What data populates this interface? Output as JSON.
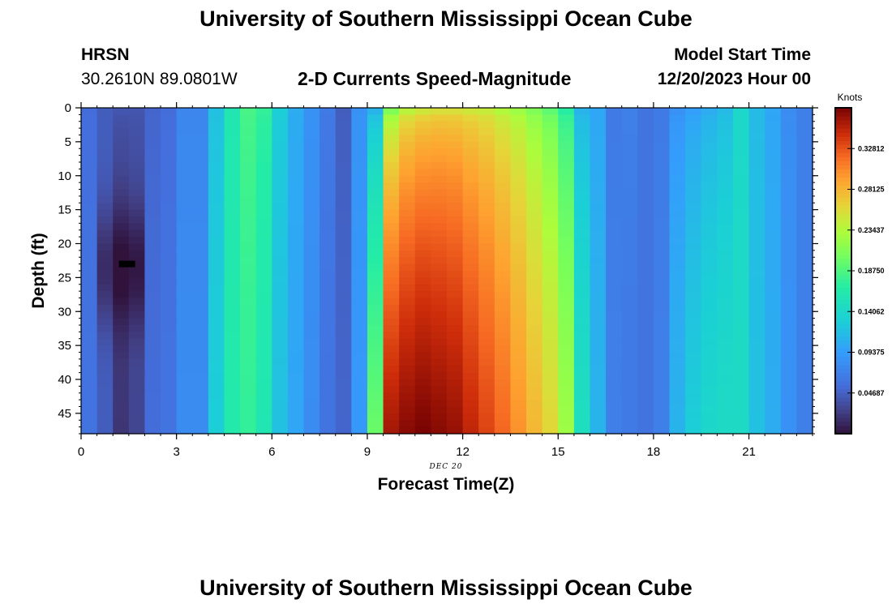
{
  "page": {
    "title": "University of Southern Mississippi Ocean Cube",
    "title_repeat": "University of Southern Mississippi Ocean Cube",
    "station": "HRSN",
    "coordinates": "30.2610N  89.0801W",
    "plot_title": "2-D Currents Speed-Magnitude",
    "model_start_label": "Model Start Time",
    "model_start_value": "12/20/2023 Hour 00",
    "date_label": "DEC 20"
  },
  "chart_data": {
    "type": "heatmap",
    "title": "2-D Currents Speed-Magnitude",
    "xlabel": "Forecast Time(Z)",
    "ylabel": "Depth (ft)",
    "xlim": [
      0,
      23
    ],
    "ylim": [
      48,
      0
    ],
    "x_ticks": [
      0,
      3,
      6,
      9,
      12,
      15,
      18,
      21
    ],
    "y_ticks": [
      0,
      5,
      10,
      15,
      20,
      25,
      30,
      35,
      40,
      45
    ],
    "colorbar": {
      "label": "Knots",
      "min": 0.0,
      "max": 0.375,
      "ticks": [
        "0.32812",
        "0.28125",
        "0.23437",
        "0.18750",
        "0.14062",
        "0.09375",
        "0.04687"
      ],
      "tick_values": [
        0.32812,
        0.28125,
        0.23437,
        0.1875,
        0.14062,
        0.09375,
        0.04687
      ]
    },
    "time_columns": 46,
    "depth_rows": 48,
    "column_speed_top": [
      0.055,
      0.045,
      0.04,
      0.04,
      0.05,
      0.055,
      0.075,
      0.075,
      0.12,
      0.16,
      0.185,
      0.175,
      0.13,
      0.105,
      0.085,
      0.065,
      0.045,
      0.085,
      0.11,
      0.21,
      0.24,
      0.25,
      0.255,
      0.255,
      0.25,
      0.245,
      0.235,
      0.225,
      0.21,
      0.195,
      0.17,
      0.11,
      0.1,
      0.065,
      0.07,
      0.06,
      0.065,
      0.085,
      0.095,
      0.105,
      0.115,
      0.14,
      0.115,
      0.1,
      0.08,
      0.07
    ],
    "column_speed_bottom": [
      0.06,
      0.045,
      0.02,
      0.03,
      0.055,
      0.06,
      0.08,
      0.08,
      0.13,
      0.165,
      0.175,
      0.16,
      0.12,
      0.1,
      0.08,
      0.06,
      0.05,
      0.09,
      0.2,
      0.36,
      0.37,
      0.375,
      0.37,
      0.365,
      0.35,
      0.335,
      0.32,
      0.3,
      0.28,
      0.26,
      0.225,
      0.15,
      0.11,
      0.07,
      0.065,
      0.06,
      0.07,
      0.11,
      0.13,
      0.14,
      0.145,
      0.145,
      0.12,
      0.105,
      0.085,
      0.07
    ],
    "annotation": {
      "label": "min-marker",
      "x": 1.7,
      "depth": 23
    }
  }
}
